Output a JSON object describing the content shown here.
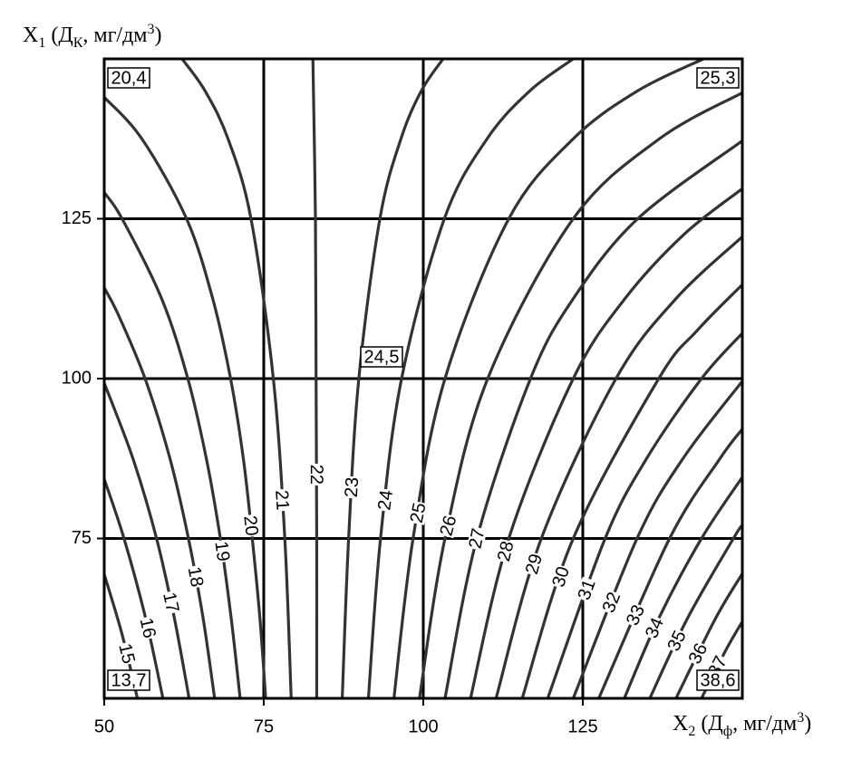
{
  "chart_data": {
    "type": "contour",
    "xlabel": [
      "X",
      "2",
      " (Д",
      "ф",
      ", мг/дм",
      "3",
      ")"
    ],
    "ylabel": [
      "X",
      "1",
      " (Д",
      "К",
      ", мг/дм",
      "3",
      ")"
    ],
    "xlim": [
      50,
      150
    ],
    "ylim": [
      50,
      150
    ],
    "xticks": [
      50,
      75,
      100,
      125
    ],
    "yticks": [
      75,
      100,
      125
    ],
    "grid": true,
    "color": "#333333",
    "contours": [
      {
        "level": 15,
        "x": [
          55.2,
          52.8,
          50
        ],
        "y": [
          50,
          60,
          69.4
        ]
      },
      {
        "level": 16,
        "x": [
          59.2,
          56.5,
          53.1,
          50
        ],
        "y": [
          50,
          62.5,
          75,
          84.3
        ]
      },
      {
        "level": 17,
        "x": [
          63.3,
          61.0,
          58.2,
          54.5,
          50
        ],
        "y": [
          50,
          62.5,
          75,
          87.5,
          99.3
        ]
      },
      {
        "level": 18,
        "x": [
          67.3,
          65.5,
          63.2,
          60.3,
          56.4,
          52.2,
          50
        ],
        "y": [
          50,
          62.5,
          75,
          87.5,
          100,
          110,
          114.2
        ]
      },
      {
        "level": 19,
        "x": [
          71.3,
          69.9,
          68.2,
          66.0,
          63.1,
          59.0,
          52.8,
          50
        ],
        "y": [
          50,
          62.5,
          75,
          87.5,
          100,
          112.5,
          125,
          129.1
        ]
      },
      {
        "level": 20,
        "x": [
          75.3,
          74.4,
          73.2,
          71.8,
          69.8,
          67.0,
          62.9,
          55.9,
          50
        ],
        "y": [
          50,
          62.5,
          75,
          87.5,
          100,
          112.5,
          125,
          137.5,
          144.0
        ]
      },
      {
        "level": 21,
        "x": [
          79.3,
          78.3,
          76.5,
          73.0,
          69.4,
          65.8,
          62.2
        ],
        "y": [
          50,
          75,
          100,
          125,
          137.5,
          145,
          150
        ]
      },
      {
        "level": 22,
        "x": [
          83.3,
          83.3,
          83.2,
          83.1,
          82.7
        ],
        "y": [
          50,
          75,
          100,
          125,
          150
        ]
      },
      {
        "level": 23,
        "x": [
          87.3,
          88.3,
          89.9,
          93.2,
          96.5,
          99.7,
          103.1
        ],
        "y": [
          50,
          75,
          100,
          125,
          137.5,
          145,
          150
        ]
      },
      {
        "level": 24,
        "x": [
          91.4,
          93.3,
          96.6,
          103.3,
          110.0,
          116.7,
          123.5
        ],
        "y": [
          50,
          75,
          100,
          125,
          137.5,
          145,
          150
        ]
      },
      {
        "level": 25,
        "x": [
          95.4,
          98.4,
          103.4,
          113.4,
          123.5,
          133.6,
          143.9
        ],
        "y": [
          50,
          75,
          100,
          125,
          137.5,
          145,
          150
        ]
      },
      {
        "level": 26,
        "x": [
          99.4,
          103.4,
          110.1,
          123.5,
          137.0,
          150
        ],
        "y": [
          50,
          75,
          100,
          125,
          137.5,
          144.7
        ]
      },
      {
        "level": 27,
        "x": [
          103.4,
          108.4,
          116.8,
          123.5,
          133.6,
          150
        ],
        "y": [
          50,
          75,
          100,
          112.5,
          125,
          137.2
        ]
      },
      {
        "level": 28,
        "x": [
          107.4,
          113.4,
          123.5,
          131.6,
          140.8,
          150
        ],
        "y": [
          50,
          75,
          100,
          112.5,
          122.5,
          129.7
        ]
      },
      {
        "level": 29,
        "x": [
          111.4,
          118.5,
          130.2,
          139.6,
          150
        ],
        "y": [
          50,
          75,
          100,
          112.5,
          122.2
        ]
      },
      {
        "level": 30,
        "x": [
          115.5,
          123.5,
          136.9,
          142.9,
          150
        ],
        "y": [
          50,
          75,
          100,
          107.5,
          114.7
        ]
      },
      {
        "level": 31,
        "x": [
          119.5,
          128.5,
          135.0,
          143.6,
          150
        ],
        "y": [
          50,
          75,
          87.5,
          100,
          107.1
        ]
      },
      {
        "level": 32,
        "x": [
          123.5,
          133.5,
          140.7,
          150
        ],
        "y": [
          50,
          75,
          87.5,
          99.6
        ]
      },
      {
        "level": 33,
        "x": [
          127.5,
          138.6,
          146.5,
          150
        ],
        "y": [
          50,
          75,
          87.5,
          92.1
        ]
      },
      {
        "level": 34,
        "x": [
          131.5,
          136.9,
          143.6,
          150
        ],
        "y": [
          50,
          62.5,
          75,
          84.6
        ]
      },
      {
        "level": 35,
        "x": [
          135.5,
          141.4,
          148.6,
          150
        ],
        "y": [
          50,
          62.5,
          75,
          77.1
        ]
      },
      {
        "level": 36,
        "x": [
          139.6,
          145.8,
          150
        ],
        "y": [
          50,
          62.5,
          69.5
        ]
      },
      {
        "level": 37,
        "x": [
          143.6,
          147.4,
          150
        ],
        "y": [
          50,
          57.5,
          62.0
        ]
      }
    ],
    "annotations": [
      {
        "text": "20,4",
        "x": 50,
        "y": 150
      },
      {
        "text": "25,3",
        "x": 150,
        "y": 150
      },
      {
        "text": "24,5",
        "x": 100,
        "y": 100
      },
      {
        "text": "13,7",
        "x": 50,
        "y": 50
      },
      {
        "text": "38,6",
        "x": 150,
        "y": 50
      }
    ]
  }
}
